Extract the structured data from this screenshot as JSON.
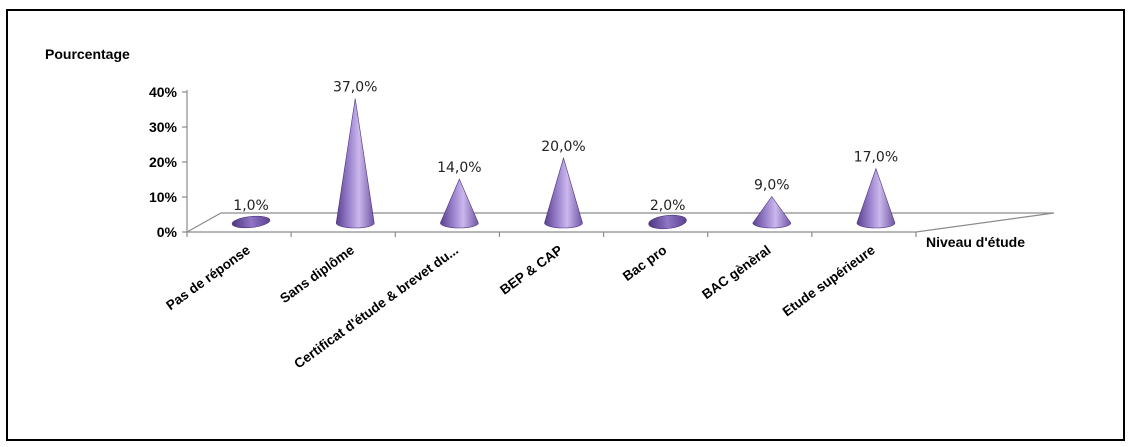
{
  "chart_data": {
    "type": "bar",
    "shape": "cone-3d",
    "ylabel": "Pourcentage",
    "xlabel": "Niveau d'étude",
    "categories": [
      "Pas de réponse",
      "Sans diplôme",
      "Certificat d'étude & brevet du...",
      "BEP & CAP",
      "Bac pro",
      "BAC gènèral",
      "Etude supérieure"
    ],
    "values": [
      1.0,
      37.0,
      14.0,
      20.0,
      2.0,
      9.0,
      17.0
    ],
    "data_labels": [
      "1,0%",
      "37,0%",
      "14,0%",
      "20,0%",
      "2,0%",
      "9,0%",
      "17,0%"
    ],
    "yticks": [
      {
        "value": 0,
        "label": "0%"
      },
      {
        "value": 10,
        "label": "10%"
      },
      {
        "value": 20,
        "label": "20%"
      },
      {
        "value": 30,
        "label": "30%"
      },
      {
        "value": 40,
        "label": "40%"
      }
    ],
    "ylim": [
      0,
      40
    ],
    "grid": false,
    "legend": "none",
    "colors": {
      "cone_light": "#cbb8ec",
      "cone_mid": "#8b6fc0",
      "cone_dark": "#4d3580",
      "axis": "#8c8c8c"
    }
  }
}
